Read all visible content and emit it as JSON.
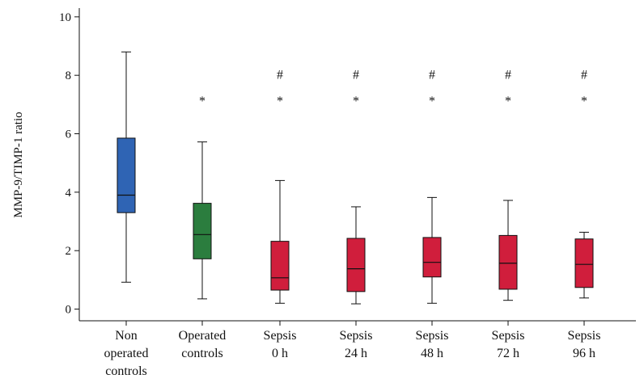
{
  "chart_data": {
    "type": "boxplot",
    "ylabel": "MMP-9/TIMP-1 ratio",
    "ylim": [
      -0.4,
      10.3
    ],
    "yticks": [
      0,
      2,
      4,
      6,
      8,
      10
    ],
    "yticks_labels": [
      "0",
      "2",
      "4",
      "6",
      "8",
      "10"
    ],
    "grid": false,
    "legend": "none",
    "categories": [
      {
        "label_lines": [
          "Non",
          "operated",
          "controls"
        ],
        "min": 0.92,
        "q1": 3.3,
        "median": 3.9,
        "q3": 5.85,
        "max": 8.8,
        "color": "#2f64b4",
        "marks": []
      },
      {
        "label_lines": [
          "Operated",
          "controls"
        ],
        "min": 0.35,
        "q1": 1.72,
        "median": 2.55,
        "q3": 3.62,
        "max": 5.72,
        "color": "#2b7d3e",
        "marks": [
          "*"
        ]
      },
      {
        "label_lines": [
          "Sepsis",
          "0 h"
        ],
        "min": 0.2,
        "q1": 0.65,
        "median": 1.07,
        "q3": 2.32,
        "max": 4.4,
        "color": "#d01e3c",
        "marks": [
          "#",
          "*"
        ]
      },
      {
        "label_lines": [
          "Sepsis",
          "24 h"
        ],
        "min": 0.18,
        "q1": 0.6,
        "median": 1.38,
        "q3": 2.42,
        "max": 3.5,
        "color": "#d01e3c",
        "marks": [
          "#",
          "*"
        ]
      },
      {
        "label_lines": [
          "Sepsis",
          "48 h"
        ],
        "min": 0.2,
        "q1": 1.1,
        "median": 1.6,
        "q3": 2.45,
        "max": 3.82,
        "color": "#d01e3c",
        "marks": [
          "#",
          "*"
        ]
      },
      {
        "label_lines": [
          "Sepsis",
          "72 h"
        ],
        "min": 0.3,
        "q1": 0.68,
        "median": 1.57,
        "q3": 2.52,
        "max": 3.72,
        "color": "#d01e3c",
        "marks": [
          "#",
          "*"
        ]
      },
      {
        "label_lines": [
          "Sepsis",
          "96 h"
        ],
        "min": 0.38,
        "q1": 0.74,
        "median": 1.53,
        "q3": 2.4,
        "max": 2.63,
        "color": "#d01e3c",
        "marks": [
          "#",
          "*"
        ]
      }
    ],
    "mark_values": {
      "#": 8.05,
      "*": 7.15
    }
  }
}
